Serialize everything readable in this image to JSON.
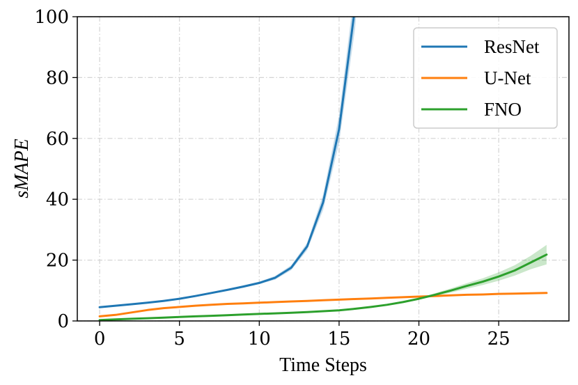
{
  "chart_data": {
    "type": "line",
    "xlabel": "Time Steps",
    "ylabel": "sMAPE",
    "xlim": [
      -1.4,
      29.4
    ],
    "ylim": [
      0,
      100
    ],
    "xticks": [
      0,
      5,
      10,
      15,
      20,
      25
    ],
    "yticks": [
      0,
      20,
      40,
      60,
      80,
      100
    ],
    "grid": true,
    "legend_position": "top-right",
    "series": [
      {
        "name": "ResNet",
        "color": "#1f77b4",
        "x": [
          0,
          1,
          2,
          3,
          4,
          5,
          6,
          7,
          8,
          9,
          10,
          11,
          12,
          13,
          14,
          15,
          16,
          17
        ],
        "y": [
          4.5,
          5.0,
          5.5,
          6.0,
          6.6,
          7.3,
          8.2,
          9.2,
          10.2,
          11.3,
          12.5,
          14.2,
          17.5,
          24.5,
          39.0,
          63.0,
          103.0,
          165.0
        ],
        "band": [
          0.2,
          0.2,
          0.2,
          0.2,
          0.2,
          0.3,
          0.3,
          0.3,
          0.3,
          0.4,
          0.4,
          0.6,
          0.8,
          1.2,
          2.5,
          4.5,
          7.0,
          10.0
        ]
      },
      {
        "name": "U-Net",
        "color": "#ff7f0e",
        "x": [
          0,
          1,
          2,
          3,
          4,
          5,
          6,
          7,
          8,
          9,
          10,
          11,
          12,
          13,
          14,
          15,
          16,
          17,
          18,
          19,
          20,
          21,
          22,
          23,
          24,
          25,
          26,
          27,
          28
        ],
        "y": [
          1.5,
          2.0,
          2.8,
          3.6,
          4.2,
          4.6,
          5.0,
          5.3,
          5.6,
          5.8,
          6.0,
          6.2,
          6.4,
          6.6,
          6.8,
          7.0,
          7.2,
          7.4,
          7.6,
          7.8,
          8.0,
          8.2,
          8.4,
          8.6,
          8.7,
          8.9,
          9.0,
          9.1,
          9.2
        ],
        "band": [
          0.1,
          0.1,
          0.1,
          0.1,
          0.1,
          0.1,
          0.1,
          0.1,
          0.1,
          0.1,
          0.1,
          0.1,
          0.1,
          0.1,
          0.1,
          0.1,
          0.1,
          0.1,
          0.1,
          0.1,
          0.1,
          0.1,
          0.1,
          0.1,
          0.1,
          0.1,
          0.1,
          0.1,
          0.1
        ]
      },
      {
        "name": "FNO",
        "color": "#2ca02c",
        "x": [
          0,
          1,
          2,
          3,
          4,
          5,
          6,
          7,
          8,
          9,
          10,
          11,
          12,
          13,
          14,
          15,
          16,
          17,
          18,
          19,
          20,
          21,
          22,
          23,
          24,
          25,
          26,
          27,
          28
        ],
        "y": [
          0.3,
          0.5,
          0.7,
          0.9,
          1.1,
          1.3,
          1.5,
          1.7,
          1.9,
          2.1,
          2.3,
          2.5,
          2.7,
          2.9,
          3.2,
          3.5,
          4.0,
          4.6,
          5.3,
          6.2,
          7.3,
          8.6,
          10.0,
          11.5,
          12.9,
          14.6,
          16.6,
          19.2,
          21.8
        ],
        "band": [
          0.1,
          0.1,
          0.1,
          0.1,
          0.1,
          0.1,
          0.1,
          0.1,
          0.1,
          0.1,
          0.1,
          0.1,
          0.1,
          0.1,
          0.1,
          0.1,
          0.1,
          0.1,
          0.1,
          0.2,
          0.3,
          0.5,
          0.7,
          0.9,
          1.1,
          1.4,
          1.7,
          2.2,
          3.2
        ]
      }
    ]
  }
}
